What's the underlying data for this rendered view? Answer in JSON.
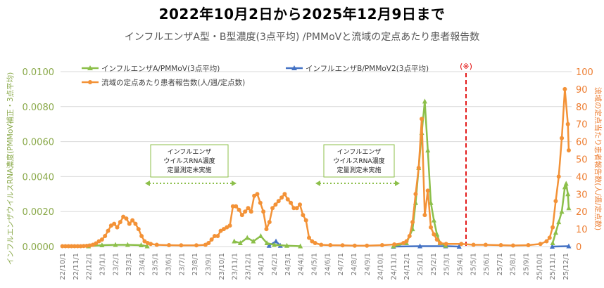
{
  "header": {
    "title": "2022年10月2日から2025年12月9日まで",
    "subtitle": "インフルエンザA型・B型濃度(3点平均) /PMMoVと流域の定点あたり患者報告数"
  },
  "legend": {
    "series_a": "インフルエンザA/PMMoV(3点平均)",
    "series_b": "インフルエンザB/PMMoV2(3点平均)",
    "series_patients": "流域の定点あたり患者報告数(人/週/定点数)"
  },
  "axes": {
    "left_title": "インフルエンザウイルスRNA濃度(PMMoV補正・3点平均)",
    "right_title": "流域の定点当たり患者報告数(人/週/定点数)",
    "left_ticks": [
      "0.0000",
      "0.0020",
      "0.0040",
      "0.0060",
      "0.0080",
      "0.0100"
    ],
    "right_ticks": [
      "0",
      "10",
      "20",
      "30",
      "40",
      "50",
      "60",
      "70",
      "80",
      "90",
      "100"
    ],
    "x_ticks": [
      "22/10/1",
      "22/11/1",
      "22/12/1",
      "23/1/1",
      "23/2/1",
      "23/3/1",
      "23/4/1",
      "23/5/1",
      "23/6/1",
      "23/7/1",
      "23/8/1",
      "23/9/1",
      "23/10/1",
      "23/11/1",
      "23/12/1",
      "24/1/1",
      "24/2/1",
      "24/3/1",
      "24/4/1",
      "24/5/1",
      "24/6/1",
      "24/7/1",
      "24/8/1",
      "24/9/1",
      "24/10/1",
      "24/11/1",
      "24/12/1",
      "25/1/1",
      "25/2/1",
      "25/3/1",
      "25/4/1",
      "25/5/1",
      "25/6/1",
      "25/7/1",
      "25/8/1",
      "25/9/1",
      "25/10/1",
      "25/11/1",
      "25/12/1"
    ]
  },
  "annotations": {
    "box1": [
      "インフルエンザ",
      "ウイルスRNA濃度",
      "定量測定未実施"
    ],
    "box2": [
      "インフルエンザ",
      "ウイルスRNA濃度",
      "定量測定未実施"
    ],
    "marker_note": "(※)"
  },
  "colors": {
    "series_a": "#8cbf4a",
    "series_b": "#4472c4",
    "series_patients": "#f39237",
    "note_line": "#e00000",
    "left_axis": "#8aa94a",
    "right_axis": "#ed7d31",
    "grid": "#d9d9d9"
  },
  "chart_data": {
    "type": "line",
    "title": "2022年10月2日から2025年12月9日まで",
    "subtitle": "インフルエンザA型・B型濃度(3点平均) /PMMoVと流域の定点あたり患者報告数",
    "xlabel": "",
    "ylabel": "インフルエンザウイルスRNA濃度(PMMoV補正・3点平均)",
    "y2label": "流域の定点当たり患者報告数(人/週/定点数)",
    "ylim": [
      0,
      0.01
    ],
    "y2lim": [
      0,
      100
    ],
    "grid": true,
    "legend_position": "top",
    "x_range": [
      "2022-10-01",
      "2025-12-09"
    ],
    "series": [
      {
        "name": "流域の定点あたり患者報告数(人/週/定点数)",
        "axis": "right",
        "points": [
          [
            "2022-10-02",
            0.2
          ],
          [
            "2022-10-09",
            0.2
          ],
          [
            "2022-10-16",
            0.2
          ],
          [
            "2022-10-23",
            0.2
          ],
          [
            "2022-10-30",
            0.2
          ],
          [
            "2022-11-06",
            0.2
          ],
          [
            "2022-11-13",
            0.2
          ],
          [
            "2022-11-20",
            0.3
          ],
          [
            "2022-11-27",
            0.4
          ],
          [
            "2022-12-04",
            0.6
          ],
          [
            "2022-12-11",
            1
          ],
          [
            "2022-12-18",
            1.8
          ],
          [
            "2022-12-25",
            3
          ],
          [
            "2023-01-01",
            4
          ],
          [
            "2023-01-08",
            6
          ],
          [
            "2023-01-15",
            9
          ],
          [
            "2023-01-22",
            12
          ],
          [
            "2023-01-29",
            13
          ],
          [
            "2023-02-05",
            11
          ],
          [
            "2023-02-12",
            14
          ],
          [
            "2023-02-19",
            17
          ],
          [
            "2023-02-26",
            16
          ],
          [
            "2023-03-05",
            13
          ],
          [
            "2023-03-12",
            15
          ],
          [
            "2023-03-19",
            13
          ],
          [
            "2023-03-26",
            10
          ],
          [
            "2023-04-02",
            6
          ],
          [
            "2023-04-09",
            3
          ],
          [
            "2023-04-16",
            2
          ],
          [
            "2023-04-23",
            1.5
          ],
          [
            "2023-05-07",
            1
          ],
          [
            "2023-06-04",
            0.8
          ],
          [
            "2023-07-02",
            0.7
          ],
          [
            "2023-08-06",
            0.7
          ],
          [
            "2023-08-27",
            1
          ],
          [
            "2023-09-03",
            2
          ],
          [
            "2023-09-10",
            4
          ],
          [
            "2023-09-17",
            6
          ],
          [
            "2023-09-24",
            6
          ],
          [
            "2023-10-01",
            9
          ],
          [
            "2023-10-08",
            10
          ],
          [
            "2023-10-15",
            11
          ],
          [
            "2023-10-22",
            12
          ],
          [
            "2023-10-29",
            23
          ],
          [
            "2023-11-05",
            23
          ],
          [
            "2023-11-12",
            21
          ],
          [
            "2023-11-19",
            18
          ],
          [
            "2023-11-26",
            20
          ],
          [
            "2023-12-03",
            22
          ],
          [
            "2023-12-10",
            20
          ],
          [
            "2023-12-17",
            29
          ],
          [
            "2023-12-24",
            30
          ],
          [
            "2023-12-31",
            25
          ],
          [
            "2024-01-07",
            20
          ],
          [
            "2024-01-14",
            10
          ],
          [
            "2024-01-21",
            14
          ],
          [
            "2024-01-28",
            22
          ],
          [
            "2024-02-04",
            24
          ],
          [
            "2024-02-11",
            26
          ],
          [
            "2024-02-18",
            28
          ],
          [
            "2024-02-25",
            30
          ],
          [
            "2024-03-03",
            27
          ],
          [
            "2024-03-10",
            25
          ],
          [
            "2024-03-17",
            22
          ],
          [
            "2024-03-24",
            22
          ],
          [
            "2024-03-31",
            24
          ],
          [
            "2024-04-07",
            18
          ],
          [
            "2024-04-14",
            15
          ],
          [
            "2024-04-21",
            5
          ],
          [
            "2024-04-28",
            3
          ],
          [
            "2024-05-05",
            2
          ],
          [
            "2024-05-19",
            1
          ],
          [
            "2024-06-09",
            0.8
          ],
          [
            "2024-07-07",
            0.7
          ],
          [
            "2024-08-04",
            0.5
          ],
          [
            "2024-09-01",
            0.5
          ],
          [
            "2024-10-06",
            0.8
          ],
          [
            "2024-11-03",
            1.2
          ],
          [
            "2024-11-24",
            2
          ],
          [
            "2024-12-01",
            3
          ],
          [
            "2024-12-08",
            6
          ],
          [
            "2024-12-15",
            14
          ],
          [
            "2024-12-22",
            30
          ],
          [
            "2024-12-29",
            45
          ],
          [
            "2025-01-05",
            73
          ],
          [
            "2025-01-12",
            18
          ],
          [
            "2025-01-19",
            32
          ],
          [
            "2025-01-26",
            11
          ],
          [
            "2025-02-02",
            7
          ],
          [
            "2025-02-09",
            4
          ],
          [
            "2025-02-16",
            2
          ],
          [
            "2025-03-02",
            1.5
          ],
          [
            "2025-04-06",
            1.5
          ],
          [
            "2025-05-04",
            1
          ],
          [
            "2025-06-01",
            1
          ],
          [
            "2025-07-06",
            0.8
          ],
          [
            "2025-08-03",
            0.6
          ],
          [
            "2025-09-07",
            0.8
          ],
          [
            "2025-10-05",
            1.5
          ],
          [
            "2025-10-19",
            3
          ],
          [
            "2025-10-26",
            5
          ],
          [
            "2025-11-02",
            11
          ],
          [
            "2025-11-09",
            26
          ],
          [
            "2025-11-16",
            40
          ],
          [
            "2025-11-23",
            62
          ],
          [
            "2025-11-30",
            90
          ],
          [
            "2025-12-07",
            70
          ],
          [
            "2025-12-09",
            55
          ]
        ]
      },
      {
        "name": "インフルエンザA/PMMoV(3点平均)",
        "axis": "left",
        "points": [
          [
            "2022-12-01",
            2e-05
          ],
          [
            "2023-01-01",
            8e-05
          ],
          [
            "2023-02-01",
            0.0001
          ],
          [
            "2023-03-01",
            0.0001
          ],
          [
            "2023-04-01",
            8e-05
          ],
          [
            "2023-04-15",
            2e-05
          ],
          [
            "2023-11-01",
            0.0003
          ],
          [
            "2023-11-15",
            0.0002
          ],
          [
            "2023-12-01",
            0.0005
          ],
          [
            "2023-12-15",
            0.0003
          ],
          [
            "2024-01-01",
            0.0006
          ],
          [
            "2024-01-15",
            0.0002
          ],
          [
            "2024-02-01",
            0.0001
          ],
          [
            "2024-03-01",
            5e-05
          ],
          [
            "2024-04-01",
            2e-05
          ],
          [
            "2024-11-01",
            2e-05
          ],
          [
            "2024-12-01",
            0.0002
          ],
          [
            "2024-12-15",
            0.001
          ],
          [
            "2024-12-22",
            0.0025
          ],
          [
            "2024-12-29",
            0.0045
          ],
          [
            "2025-01-05",
            0.0065
          ],
          [
            "2025-01-12",
            0.0083
          ],
          [
            "2025-01-19",
            0.0055
          ],
          [
            "2025-01-26",
            0.0025
          ],
          [
            "2025-02-02",
            0.0015
          ],
          [
            "2025-02-09",
            0.0007
          ],
          [
            "2025-02-16",
            0.0002
          ],
          [
            "2025-03-01",
            5e-05
          ],
          [
            "2025-11-02",
            0.0002
          ],
          [
            "2025-11-09",
            0.0008
          ],
          [
            "2025-11-16",
            0.0014
          ],
          [
            "2025-11-23",
            0.002
          ],
          [
            "2025-11-30",
            0.0034
          ],
          [
            "2025-12-03",
            0.0036
          ],
          [
            "2025-12-07",
            0.003
          ],
          [
            "2025-12-09",
            0.0022
          ]
        ]
      },
      {
        "name": "インフルエンザB/PMMoV2(3点平均)",
        "axis": "left",
        "points": [
          [
            "2024-01-20",
            5e-05
          ],
          [
            "2024-02-05",
            0.0003
          ],
          [
            "2024-02-15",
            5e-05
          ],
          [
            "2024-11-01",
            0.0
          ],
          [
            "2025-01-01",
            2e-05
          ],
          [
            "2025-03-01",
            2e-05
          ],
          [
            "2025-04-01",
            0.0
          ],
          [
            "2025-11-01",
            0.0
          ],
          [
            "2025-12-09",
            2e-05
          ]
        ]
      }
    ]
  }
}
